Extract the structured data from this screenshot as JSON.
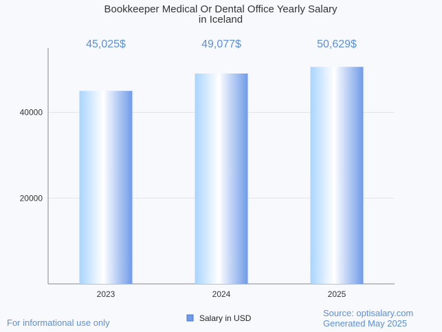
{
  "chart_data": {
    "type": "bar",
    "title_lines": [
      "Bookkeeper Medical Or Dental Office Yearly Salary",
      "in Iceland"
    ],
    "categories": [
      "2023",
      "2024",
      "2025"
    ],
    "series": [
      {
        "name": "Salary in USD",
        "values": [
          45025,
          49077,
          50629
        ],
        "labels": [
          "45,025$",
          "49,077$",
          "50,629$"
        ]
      }
    ],
    "y_ticks": [
      20000,
      40000
    ],
    "ylim": [
      0,
      55000
    ],
    "grid": true,
    "legend_position": "bottom",
    "colors": {
      "bar_light": "#e6f4ff",
      "bar_dark": "#6f9be8",
      "label": "#5b8fd9"
    }
  },
  "footer": {
    "disclaimer": "For informational use only",
    "source": "Source: optisalary.com",
    "generated": "Generated May 2025"
  }
}
